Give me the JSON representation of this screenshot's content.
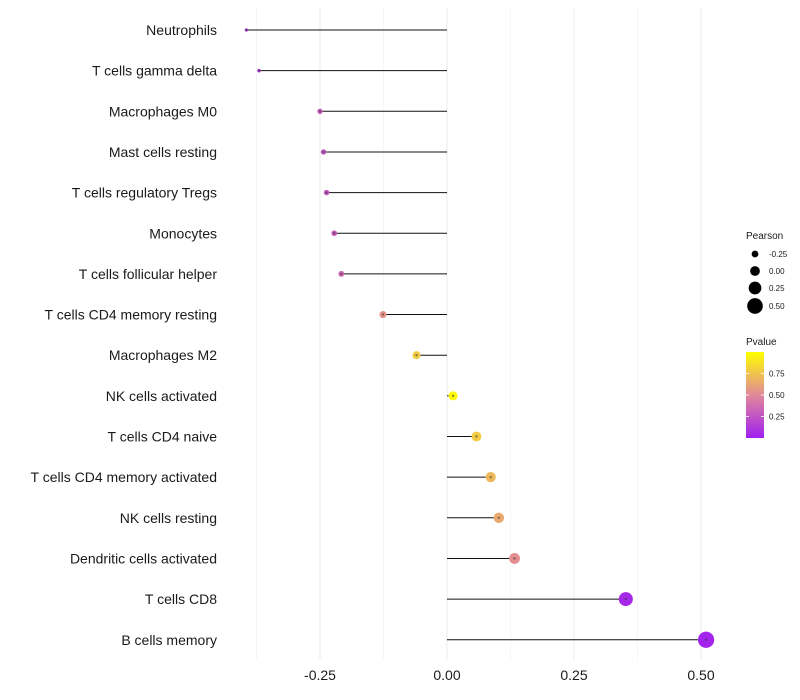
{
  "chart_data": {
    "type": "lollipop",
    "title": "",
    "xlabel": "",
    "ylabel": "",
    "xlim": [
      -0.5,
      0.54
    ],
    "xticks": [
      -0.25,
      0.0,
      0.25,
      0.5
    ],
    "xtick_labels": [
      "-0.25",
      "0.00",
      "0.25",
      "0.50"
    ],
    "grid": true,
    "categories": [
      "Neutrophils",
      "T cells gamma delta",
      "Macrophages M0",
      "Mast cells resting",
      "T cells regulatory  Tregs ",
      "Monocytes",
      "T cells follicular helper",
      "T cells CD4 memory resting",
      "Macrophages M2",
      "NK cells activated",
      "T cells CD4 naive",
      "T cells CD4 memory activated",
      "NK cells resting",
      "Dendritic cells activated",
      "T cells CD8",
      "B cells memory"
    ],
    "pearson": [
      -0.395,
      -0.37,
      -0.25,
      -0.243,
      -0.237,
      -0.222,
      -0.208,
      -0.126,
      -0.06,
      0.012,
      0.058,
      0.086,
      0.102,
      0.133,
      0.352,
      0.51
    ],
    "pvalue": [
      0.1,
      0.14,
      0.3,
      0.28,
      0.26,
      0.3,
      0.35,
      0.55,
      0.78,
      0.98,
      0.78,
      0.7,
      0.64,
      0.53,
      0.04,
      0.02
    ],
    "legend_size": {
      "title": "Pearson",
      "values": [
        -0.25,
        0.0,
        0.25,
        0.5
      ],
      "labels": [
        "-0.25",
        "0.00",
        "0.25",
        "0.50"
      ]
    },
    "legend_color": {
      "title": "Pvalue",
      "range": [
        0.0,
        1.0
      ],
      "ticks": [
        0.25,
        0.5,
        0.75
      ],
      "tick_labels": [
        "0.25",
        "0.50",
        "0.75"
      ],
      "low_color": "#a020f0",
      "mid_color": "#e1889a",
      "high_color": "#ffff00"
    },
    "legend_position": "right"
  }
}
